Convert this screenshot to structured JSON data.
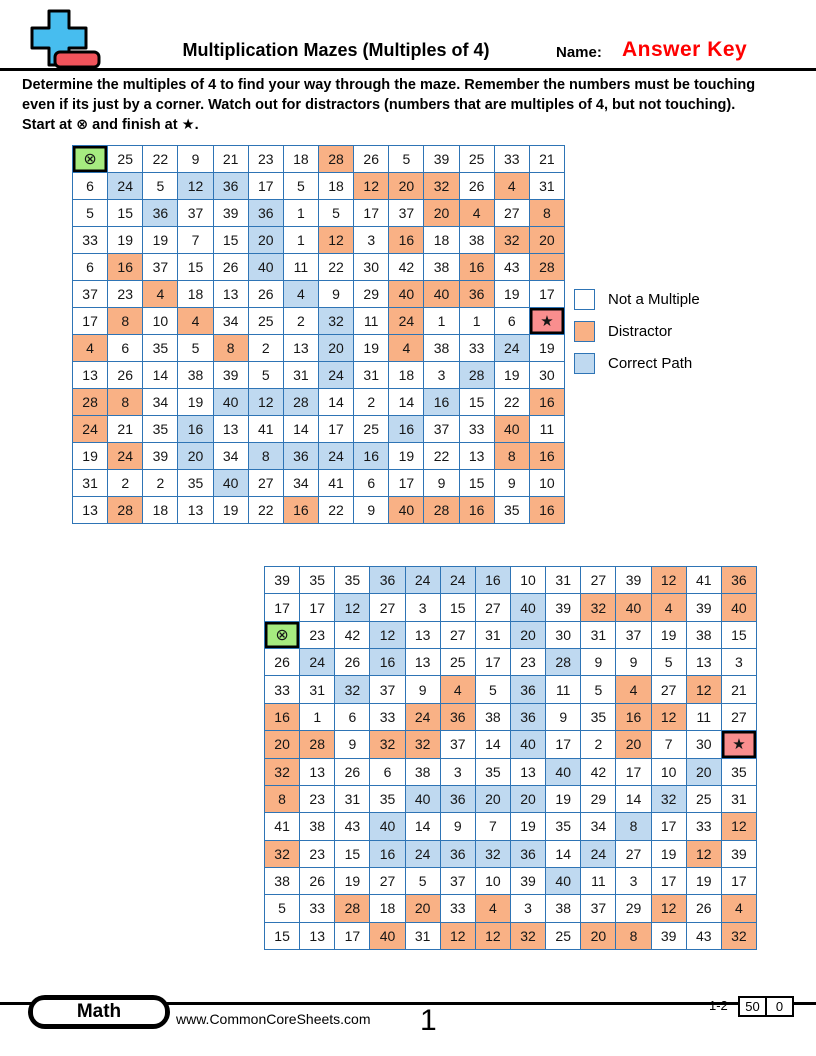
{
  "header": {
    "title": "Multiplication Mazes (Multiples of 4)",
    "name_label": "Name:",
    "name_value": "Answer Key"
  },
  "instructions": {
    "lines": [
      "Determine the multiples of 4 to find your way through the maze. Remember the numbers must be touching",
      "even if its just by a corner. Watch out for distractors (numbers that are multiples of 4, but not touching).",
      "Start at ⊗ and finish at ★."
    ]
  },
  "legend": {
    "items": [
      {
        "code": "n",
        "label": "Not a Multiple",
        "color": "#FFFFFF"
      },
      {
        "code": "d",
        "label": "Distractor",
        "color": "#F9B185"
      },
      {
        "code": "p",
        "label": "Correct Path",
        "color": "#BFD9F0"
      }
    ],
    "start": {
      "code": "s",
      "symbol": "⊗",
      "color": "#A6EB80"
    },
    "finish": {
      "code": "f",
      "symbol": "★",
      "color": "#F98E8E"
    }
  },
  "colors": {
    "grid_line": "#2E74B5",
    "answer_key_red": "#FF0000",
    "logo_blue": "#47BDEF",
    "logo_red": "#F2545B"
  },
  "mazes": [
    {
      "name": "maze-1",
      "rows": [
        [
          "⊗:s",
          "25:n",
          "22:n",
          "9:n",
          "21:n",
          "23:n",
          "18:n",
          "28:d",
          "26:n",
          "5:n",
          "39:n",
          "25:n",
          "33:n",
          "21:n"
        ],
        [
          "6:n",
          "24:p",
          "5:n",
          "12:p",
          "36:p",
          "17:n",
          "5:n",
          "18:n",
          "12:d",
          "20:d",
          "32:d",
          "26:n",
          "4:d",
          "31:n"
        ],
        [
          "5:n",
          "15:n",
          "36:p",
          "37:n",
          "39:n",
          "36:p",
          "1:n",
          "5:n",
          "17:n",
          "37:n",
          "20:d",
          "4:d",
          "27:n",
          "8:d"
        ],
        [
          "33:n",
          "19:n",
          "19:n",
          "7:n",
          "15:n",
          "20:p",
          "1:n",
          "12:d",
          "3:n",
          "16:d",
          "18:n",
          "38:n",
          "32:d",
          "20:d"
        ],
        [
          "6:n",
          "16:d",
          "37:n",
          "15:n",
          "26:n",
          "40:p",
          "11:n",
          "22:n",
          "30:n",
          "42:n",
          "38:n",
          "16:d",
          "43:n",
          "28:d"
        ],
        [
          "37:n",
          "23:n",
          "4:d",
          "18:n",
          "13:n",
          "26:n",
          "4:p",
          "9:n",
          "29:n",
          "40:d",
          "40:d",
          "36:d",
          "19:n",
          "17:n"
        ],
        [
          "17:n",
          "8:d",
          "10:n",
          "4:d",
          "34:n",
          "25:n",
          "2:n",
          "32:p",
          "11:n",
          "24:d",
          "1:n",
          "1:n",
          "6:n",
          "★:f"
        ],
        [
          "4:d",
          "6:n",
          "35:n",
          "5:n",
          "8:d",
          "2:n",
          "13:n",
          "20:p",
          "19:n",
          "4:d",
          "38:n",
          "33:n",
          "24:p",
          "19:n"
        ],
        [
          "13:n",
          "26:n",
          "14:n",
          "38:n",
          "39:n",
          "5:n",
          "31:n",
          "24:p",
          "31:n",
          "18:n",
          "3:n",
          "28:p",
          "19:n",
          "30:n"
        ],
        [
          "28:d",
          "8:d",
          "34:n",
          "19:n",
          "40:p",
          "12:p",
          "28:p",
          "14:n",
          "2:n",
          "14:n",
          "16:p",
          "15:n",
          "22:n",
          "16:d"
        ],
        [
          "24:d",
          "21:n",
          "35:n",
          "16:p",
          "13:n",
          "41:n",
          "14:n",
          "17:n",
          "25:n",
          "16:p",
          "37:n",
          "33:n",
          "40:d",
          "11:n"
        ],
        [
          "19:n",
          "24:d",
          "39:n",
          "20:p",
          "34:n",
          "8:p",
          "36:p",
          "24:p",
          "16:p",
          "19:n",
          "22:n",
          "13:n",
          "8:d",
          "16:d"
        ],
        [
          "31:n",
          "2:n",
          "2:n",
          "35:n",
          "40:p",
          "27:n",
          "34:n",
          "41:n",
          "6:n",
          "17:n",
          "9:n",
          "15:n",
          "9:n",
          "10:n"
        ],
        [
          "13:n",
          "28:d",
          "18:n",
          "13:n",
          "19:n",
          "22:n",
          "16:d",
          "22:n",
          "9:n",
          "40:d",
          "28:d",
          "16:d",
          "35:n",
          "16:d"
        ]
      ]
    },
    {
      "name": "maze-2",
      "rows": [
        [
          "39:n",
          "35:n",
          "35:n",
          "36:p",
          "24:p",
          "24:p",
          "16:p",
          "10:n",
          "31:n",
          "27:n",
          "39:n",
          "12:d",
          "41:n",
          "36:d"
        ],
        [
          "17:n",
          "17:n",
          "12:p",
          "27:n",
          "3:n",
          "15:n",
          "27:n",
          "40:p",
          "39:n",
          "32:d",
          "40:d",
          "4:d",
          "39:n",
          "40:d"
        ],
        [
          "⊗:s",
          "23:n",
          "42:n",
          "12:p",
          "13:n",
          "27:n",
          "31:n",
          "20:p",
          "30:n",
          "31:n",
          "37:n",
          "19:n",
          "38:n",
          "15:n"
        ],
        [
          "26:n",
          "24:p",
          "26:n",
          "16:p",
          "13:n",
          "25:n",
          "17:n",
          "23:n",
          "28:p",
          "9:n",
          "9:n",
          "5:n",
          "13:n",
          "3:n"
        ],
        [
          "33:n",
          "31:n",
          "32:p",
          "37:n",
          "9:n",
          "4:d",
          "5:n",
          "36:p",
          "11:n",
          "5:n",
          "4:d",
          "27:n",
          "12:d",
          "21:n"
        ],
        [
          "16:d",
          "1:n",
          "6:n",
          "33:n",
          "24:d",
          "36:d",
          "38:n",
          "36:p",
          "9:n",
          "35:n",
          "16:d",
          "12:d",
          "11:n",
          "27:n"
        ],
        [
          "20:d",
          "28:d",
          "9:n",
          "32:d",
          "32:d",
          "37:n",
          "14:n",
          "40:p",
          "17:n",
          "2:n",
          "20:d",
          "7:n",
          "30:n",
          "★:f"
        ],
        [
          "32:d",
          "13:n",
          "26:n",
          "6:n",
          "38:n",
          "3:n",
          "35:n",
          "13:n",
          "40:p",
          "42:n",
          "17:n",
          "10:n",
          "20:p",
          "35:n"
        ],
        [
          "8:d",
          "23:n",
          "31:n",
          "35:n",
          "40:p",
          "36:p",
          "20:p",
          "20:p",
          "19:n",
          "29:n",
          "14:n",
          "32:p",
          "25:n",
          "31:n"
        ],
        [
          "41:n",
          "38:n",
          "43:n",
          "40:p",
          "14:n",
          "9:n",
          "7:n",
          "19:n",
          "35:n",
          "34:n",
          "8:p",
          "17:n",
          "33:n",
          "12:d"
        ],
        [
          "32:d",
          "23:n",
          "15:n",
          "16:p",
          "24:p",
          "36:p",
          "32:p",
          "36:p",
          "14:n",
          "24:p",
          "27:n",
          "19:n",
          "12:d",
          "39:n"
        ],
        [
          "38:n",
          "26:n",
          "19:n",
          "27:n",
          "5:n",
          "37:n",
          "10:n",
          "39:n",
          "40:p",
          "11:n",
          "3:n",
          "17:n",
          "19:n",
          "17:n"
        ],
        [
          "5:n",
          "33:n",
          "28:d",
          "18:n",
          "20:d",
          "33:n",
          "4:d",
          "3:n",
          "38:n",
          "37:n",
          "29:n",
          "12:d",
          "26:n",
          "4:d"
        ],
        [
          "15:n",
          "13:n",
          "17:n",
          "40:d",
          "31:n",
          "12:d",
          "12:d",
          "32:d",
          "25:n",
          "20:d",
          "8:d",
          "39:n",
          "43:n",
          "32:d"
        ]
      ]
    }
  ],
  "footer": {
    "subject_badge": "Math",
    "website": "www.CommonCoreSheets.com",
    "page_number": "1",
    "problem_range": "1-2",
    "score_boxes": [
      "50",
      "0"
    ]
  }
}
